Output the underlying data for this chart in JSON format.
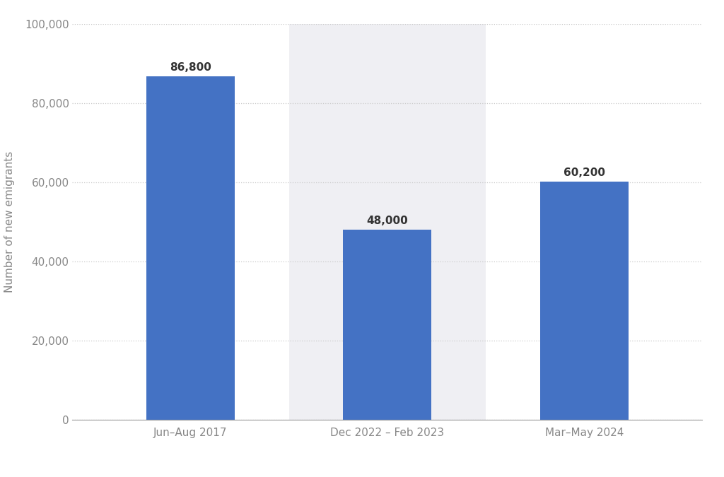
{
  "categories": [
    "Jun–Aug 2017",
    "Dec 2022 – Feb 2023",
    "Mar–May 2024"
  ],
  "values": [
    86800,
    48000,
    60200
  ],
  "bar_labels": [
    "86,800",
    "48,000",
    "60,200"
  ],
  "bar_color": "#4472C4",
  "highlight_bar_index": 1,
  "highlight_bg_color": "#EFEFF3",
  "ylabel": "Number of new emigrants",
  "ylim": [
    0,
    100000
  ],
  "yticks": [
    0,
    20000,
    40000,
    60000,
    80000,
    100000
  ],
  "ytick_labels": [
    "0",
    "20,000",
    "40,000",
    "60,000",
    "80,000",
    "100,000"
  ],
  "grid_color": "#CCCCCC",
  "background_color": "#FFFFFF",
  "axes_background_color": "#FFFFFF",
  "bar_width": 0.45,
  "label_fontsize": 11,
  "tick_fontsize": 11,
  "ylabel_fontsize": 11
}
